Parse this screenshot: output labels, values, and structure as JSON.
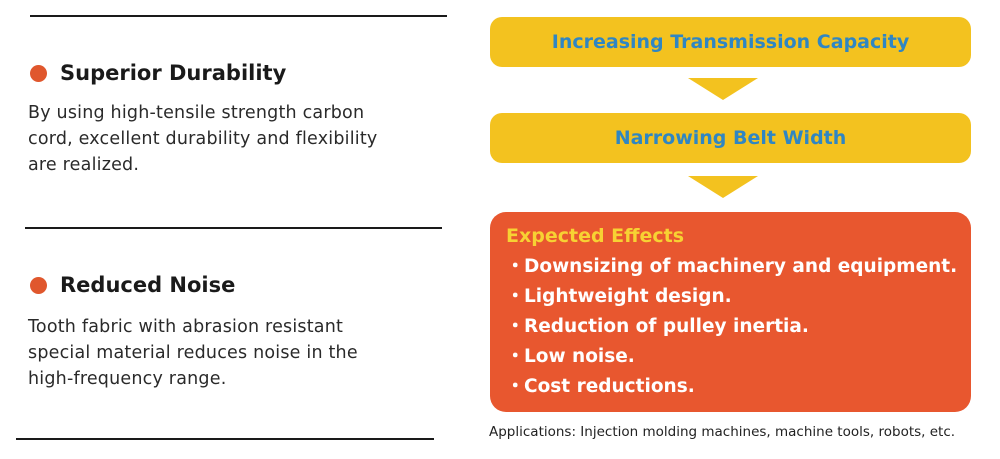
{
  "features": [
    {
      "title": "Superior Durability",
      "body_lines": [
        "By using high-tensile strength carbon",
        "cord, excellent durability and flexibility",
        "are realized."
      ]
    },
    {
      "title": "Reduced Noise",
      "body_lines": [
        "Tooth fabric with abrasion resistant",
        "special material reduces noise in the",
        "high-frequency range."
      ]
    }
  ],
  "flow": {
    "steps": [
      "Increasing Transmission Capacity",
      "Narrowing Belt Width"
    ],
    "effects": {
      "title": "Expected Effects",
      "bullet": "・",
      "items": [
        "Downsizing of machinery and equipment.",
        "Lightweight design.",
        "Reduction of pulley inertia.",
        "Low noise.",
        "Cost reductions."
      ]
    },
    "applications": "Applications: Injection molding machines, machine tools, robots, etc."
  },
  "colors": {
    "bullet_dot": "#e0572d",
    "step_fill": "#f3c21f",
    "step_text": "#2f86c3",
    "effects_fill": "#e8572f",
    "effects_title": "#f7d233",
    "effects_text": "#ffffff"
  },
  "icons": [
    "orange-dot-bullet-icon",
    "down-arrow-icon"
  ]
}
